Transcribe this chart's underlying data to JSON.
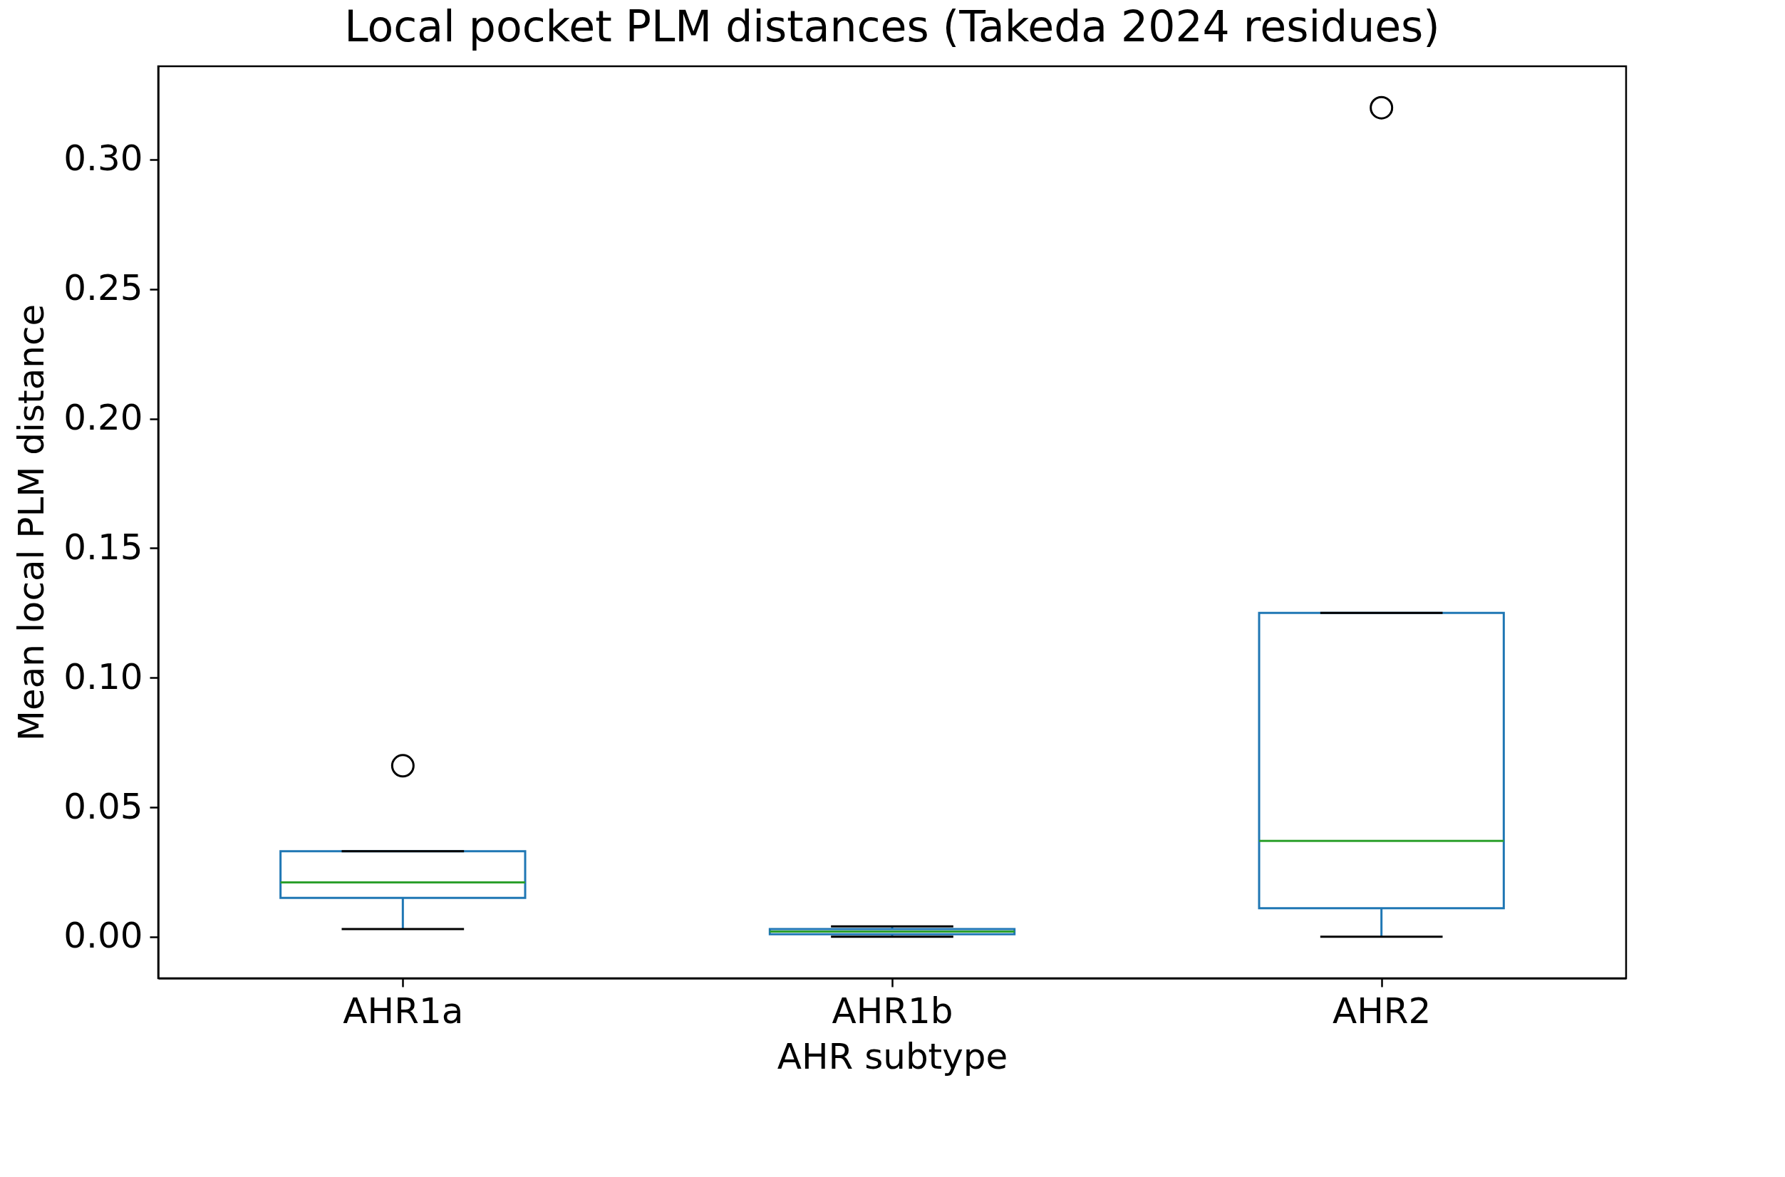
{
  "chart_data": {
    "type": "box",
    "title": "Local pocket PLM distances (Takeda 2024 residues)",
    "xlabel": "AHR subtype",
    "ylabel": "Mean local PLM distance",
    "categories": [
      "AHR1a",
      "AHR1b",
      "AHR2"
    ],
    "series": [
      {
        "color": "#1f77b4",
        "boxes": [
          {
            "low": 0.003,
            "q1": 0.015,
            "median": 0.021,
            "q3": 0.033,
            "high": 0.033,
            "outliers": [
              0.066
            ]
          },
          {
            "low": 0.0,
            "q1": 0.001,
            "median": 0.002,
            "q3": 0.003,
            "high": 0.004
          },
          {
            "low": 0.0,
            "q1": 0.011,
            "median": 0.037,
            "q3": 0.125,
            "high": 0.125,
            "outliers": [
              0.32
            ]
          }
        ]
      }
    ],
    "ylim": [
      -0.016,
      0.336
    ],
    "yticks": [
      {
        "value": 0,
        "label": "0.00"
      },
      {
        "value": 0.05,
        "label": "0.05"
      },
      {
        "value": 0.1,
        "label": "0.10"
      },
      {
        "value": 0.15,
        "label": "0.15"
      },
      {
        "value": 0.2,
        "label": "0.20"
      },
      {
        "value": 0.25,
        "label": "0.25"
      },
      {
        "value": 0.3,
        "label": "0.30"
      }
    ],
    "grid": false
  }
}
